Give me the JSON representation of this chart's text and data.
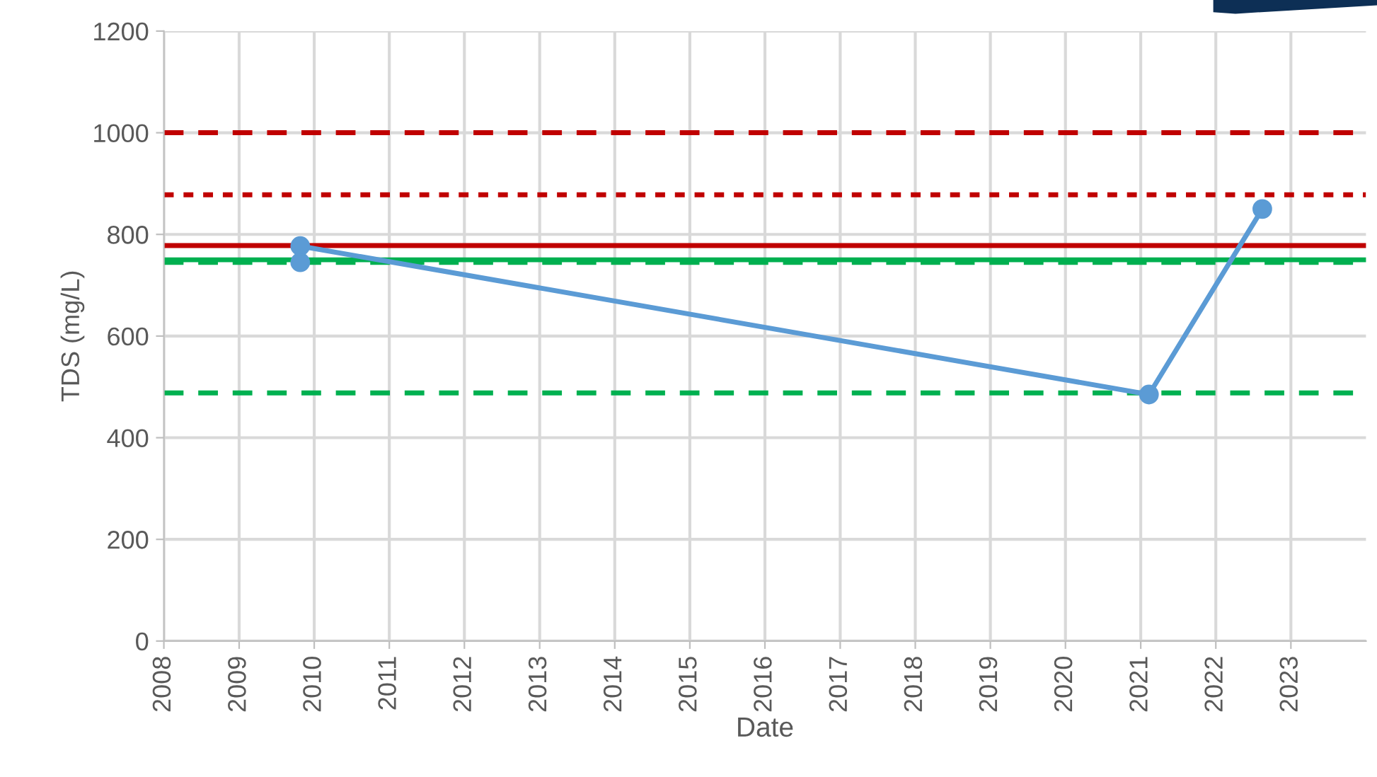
{
  "chart_data": {
    "type": "line",
    "xlabel": "Date",
    "ylabel": "TDS (mg/L)",
    "x": [
      "2009-10-25",
      "2009-10-25",
      "2021-02-10",
      "2022-08-15"
    ],
    "series": [
      {
        "color": "#5b9bd5",
        "values": [
          745,
          777,
          485,
          850
        ]
      }
    ],
    "xlim": [
      "2008-01-01",
      "2024-01-01"
    ],
    "xticks": [
      "2008",
      "2009",
      "2010",
      "2011",
      "2012",
      "2013",
      "2014",
      "2015",
      "2016",
      "2017",
      "2018",
      "2019",
      "2020",
      "2021",
      "2022",
      "2023"
    ],
    "ylim": [
      0,
      1200
    ],
    "yticks": [
      0,
      200,
      400,
      600,
      800,
      1000,
      1200
    ],
    "ref_lines": [
      {
        "axis": "y",
        "value": 1000,
        "color": "#c00000",
        "line_style": "dashed"
      },
      {
        "axis": "y",
        "value": 878,
        "color": "#c00000",
        "line_style": "dotted"
      },
      {
        "axis": "y",
        "value": 778,
        "color": "#c00000",
        "line_style": "solid"
      },
      {
        "axis": "y",
        "value": 750,
        "color": "#00b050",
        "line_style": "solid"
      },
      {
        "axis": "y",
        "value": 745,
        "color": "#00b050",
        "line_style": "dashed"
      },
      {
        "axis": "y",
        "value": 488,
        "color": "#00b050",
        "line_style": "dashed"
      }
    ],
    "grid": true,
    "marker": "circle",
    "line_style": "solid",
    "legend": false
  }
}
